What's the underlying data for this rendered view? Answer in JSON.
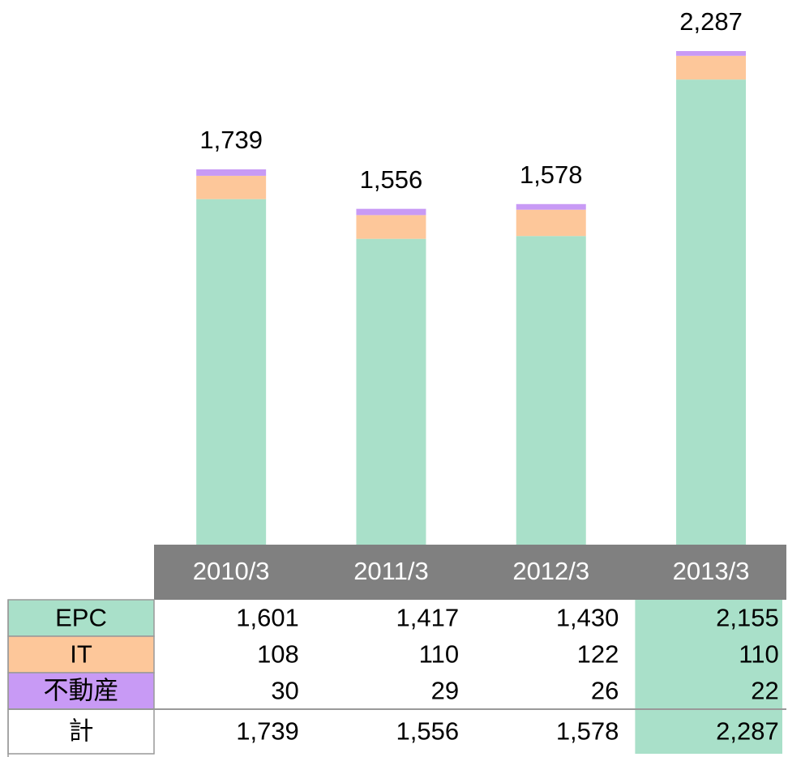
{
  "chart_data": {
    "type": "stacked_bar",
    "categories": [
      "2010/3",
      "2011/3",
      "2012/3",
      "2013/3"
    ],
    "series": [
      {
        "name": "EPC",
        "color": "#a9e0c9",
        "values": [
          1601,
          1417,
          1430,
          2155
        ],
        "value_labels": [
          "1,601",
          "1,417",
          "1,430",
          "2,155"
        ]
      },
      {
        "name": "IT",
        "color": "#fdc79a",
        "values": [
          108,
          110,
          122,
          110
        ],
        "value_labels": [
          "108",
          "110",
          "122",
          "110"
        ]
      },
      {
        "name": "不動産",
        "color": "#c89af5",
        "values": [
          30,
          29,
          26,
          22
        ],
        "value_labels": [
          "30",
          "29",
          "26",
          "22"
        ]
      }
    ],
    "total": {
      "name": "計",
      "values": [
        1739,
        1556,
        1578,
        2287
      ],
      "value_labels": [
        "1,739",
        "1,556",
        "1,578",
        "2,287"
      ]
    },
    "highlight_index": 3,
    "highlight_color": "#a9e0c9"
  }
}
